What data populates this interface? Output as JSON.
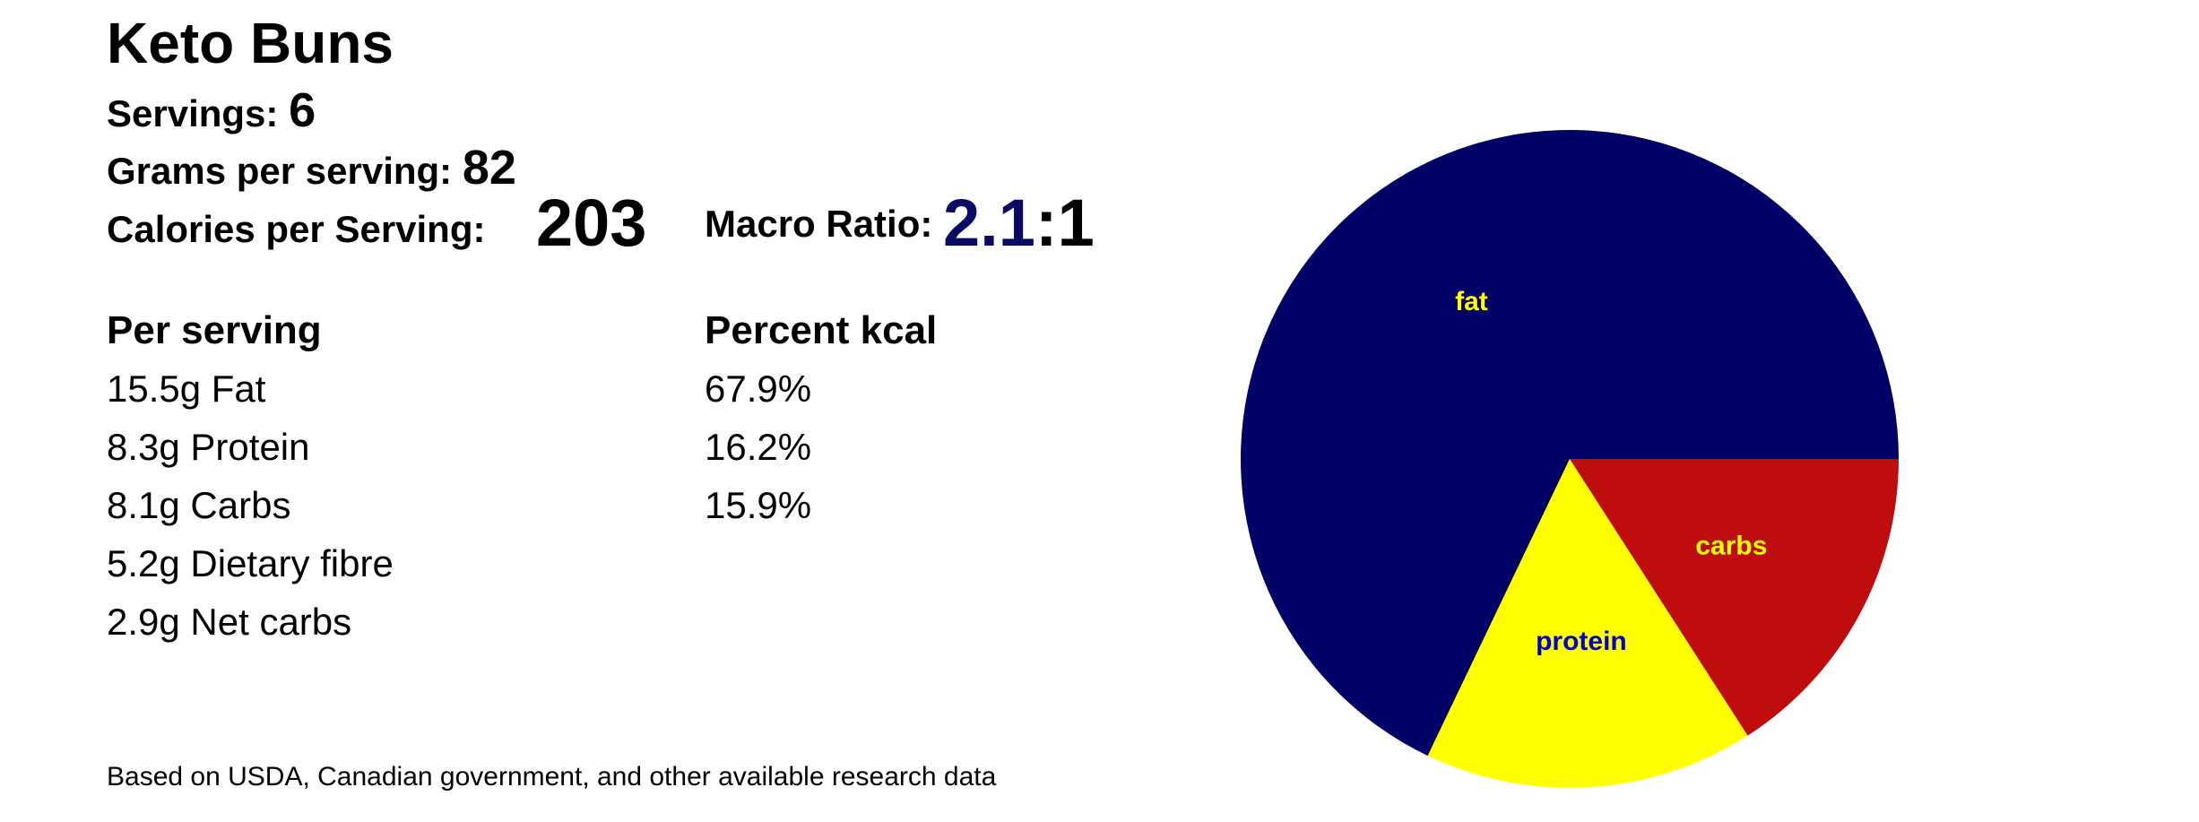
{
  "recipe": {
    "title": "Keto Buns",
    "servings_label": "Servings: ",
    "servings_value": "6",
    "grams_label": "Grams per serving: ",
    "grams_value": "82",
    "calories_label": "Calories per Serving:",
    "calories_value": "203",
    "macro_ratio_label": "Macro Ratio: ",
    "macro_ratio_value": "2.1",
    "macro_ratio_sep": ":",
    "macro_ratio_one": "1"
  },
  "per_serving": {
    "header": "Per serving",
    "rows": [
      "15.5g Fat",
      "8.3g Protein",
      "8.1g Carbs",
      "5.2g Dietary fibre",
      "2.9g Net carbs"
    ]
  },
  "percent_kcal": {
    "header": "Percent kcal",
    "rows": [
      "67.9%",
      "16.2%",
      "15.9%"
    ]
  },
  "footnote": "Based on USDA, Canadian government, and other available research data",
  "chart_data": {
    "type": "pie",
    "title": "",
    "start_angle_deg": 0,
    "direction": "counterclockwise",
    "slices": [
      {
        "label": "fat",
        "value": 67.9,
        "color": "#000066",
        "label_color": "#ffff00"
      },
      {
        "label": "protein",
        "value": 16.2,
        "color": "#ffff00",
        "label_color": "#0000cc"
      },
      {
        "label": "carbs",
        "value": 15.9,
        "color": "#bf0d0d",
        "label_color": "#ffff00"
      }
    ],
    "legend": "none"
  }
}
